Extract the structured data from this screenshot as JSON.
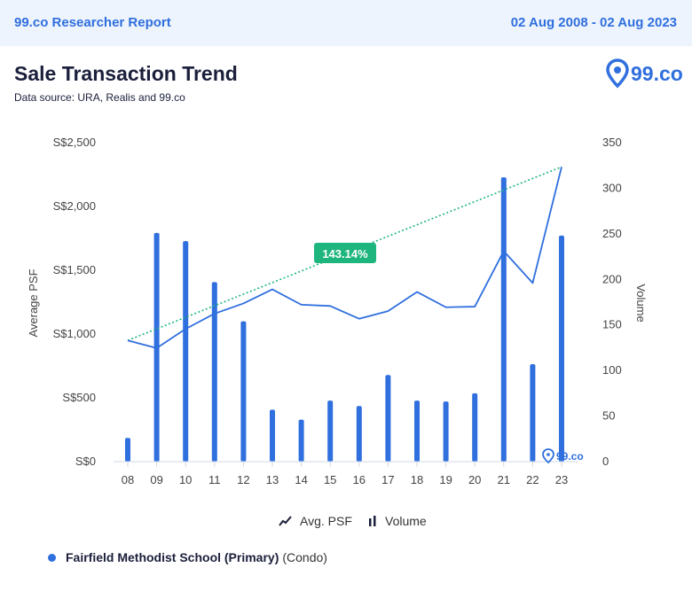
{
  "header": {
    "brand": "99.co Researcher Report",
    "date_range": "02 Aug 2008 - 02 Aug 2023"
  },
  "report": {
    "title": "Sale Transaction Trend",
    "source": "Data source: URA, Realis and 99.co"
  },
  "logo": {
    "text": "99.co",
    "watermark": "99.co",
    "icon": "location-pin-icon"
  },
  "chart_data": {
    "type": "bar",
    "categories": [
      "08",
      "09",
      "10",
      "11",
      "12",
      "13",
      "14",
      "15",
      "16",
      "17",
      "18",
      "19",
      "20",
      "21",
      "22",
      "23"
    ],
    "series": [
      {
        "name": "Volume",
        "type": "bar",
        "axis": "right",
        "values": [
          26,
          251,
          242,
          197,
          154,
          57,
          46,
          67,
          61,
          95,
          67,
          66,
          75,
          312,
          107,
          248
        ]
      },
      {
        "name": "Avg. PSF",
        "type": "line",
        "axis": "left",
        "values": [
          950,
          890,
          1040,
          1160,
          1240,
          1350,
          1230,
          1220,
          1120,
          1180,
          1330,
          1210,
          1215,
          1650,
          1400,
          2310
        ]
      }
    ],
    "trendline": {
      "from": 950,
      "to": 2310,
      "label": "143.14%"
    },
    "ylabel": "Average PSF",
    "y2label": "Volume",
    "ylim": [
      0,
      2500
    ],
    "y2lim": [
      0,
      350
    ],
    "yticks": [
      "S$0",
      "S$500",
      "S$1,000",
      "S$1,500",
      "S$2,000",
      "S$2,500"
    ],
    "y2ticks": [
      "0",
      "50",
      "100",
      "150",
      "200",
      "250",
      "300",
      "350"
    ],
    "grid": false,
    "legend_position": "bottom"
  },
  "legend": {
    "psf_label": "Avg. PSF",
    "volume_label": "Volume"
  },
  "footer": {
    "school": "Fairfield Methodist School (Primary)",
    "type": "(Condo)"
  },
  "colors": {
    "primary": "#2f6fde",
    "trend": "#1fb57e",
    "label_bg": "#1fb57e",
    "dark": "#1b1f3b"
  }
}
